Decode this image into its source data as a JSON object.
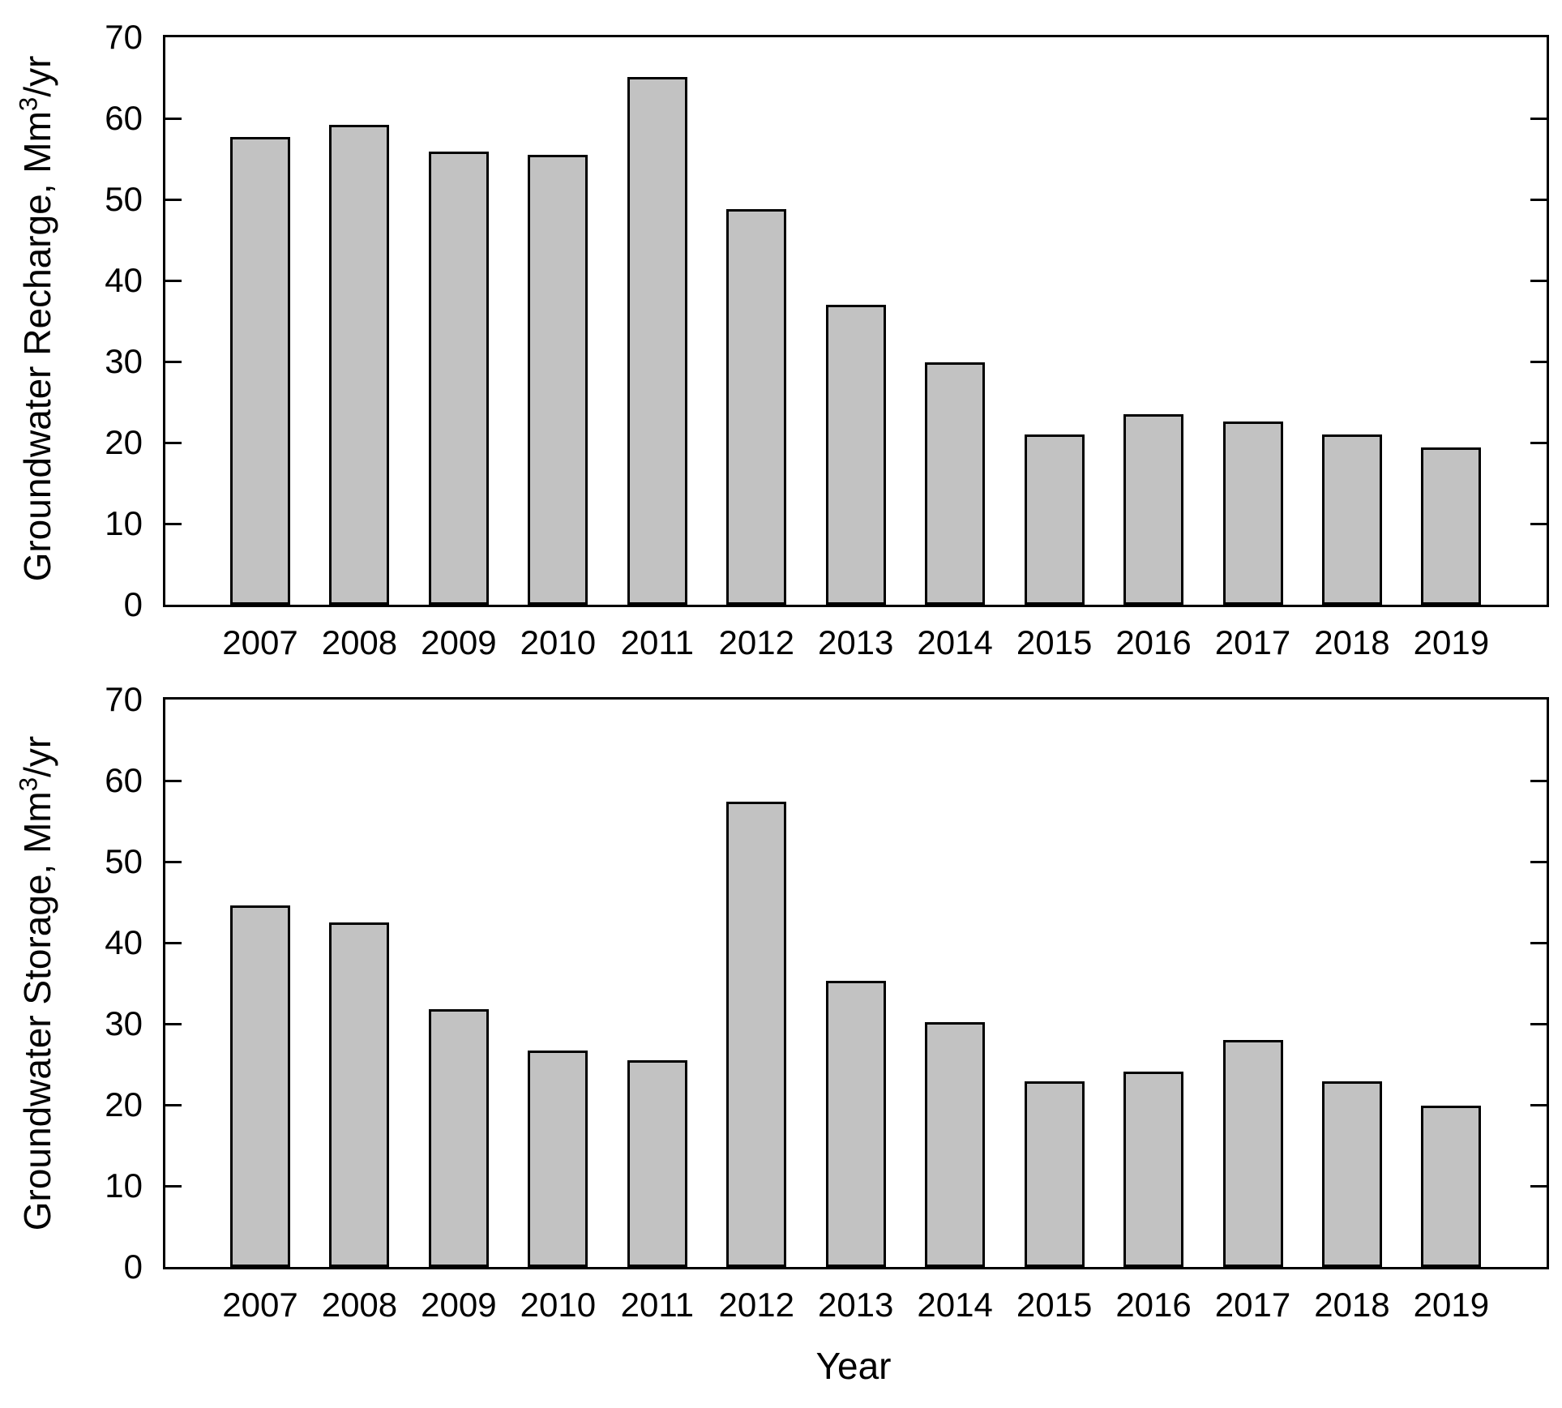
{
  "page": {
    "background": "#ffffff"
  },
  "style": {
    "bar_fill": "#c2c2c2",
    "bar_border": "#000000",
    "axis_color": "#000000",
    "text_color": "#000000"
  },
  "axes": {
    "y_tick_labels": [
      "0",
      "10",
      "20",
      "30",
      "40",
      "50",
      "60",
      "70"
    ],
    "x_tick_labels": [
      "2007",
      "2008",
      "2009",
      "2010",
      "2011",
      "2012",
      "2013",
      "2014",
      "2015",
      "2016",
      "2017",
      "2018",
      "2019"
    ],
    "x_axis_title": "Year",
    "y_axis_titles": [
      {
        "prefix": "Groundwater Recharge, Mm",
        "sup": "3",
        "suffix": "/yr"
      },
      {
        "prefix": "Groundwater Storage, Mm",
        "sup": "3",
        "suffix": "/yr"
      }
    ]
  },
  "chart_data": [
    {
      "type": "bar",
      "title": "",
      "categories": [
        2007,
        2008,
        2009,
        2010,
        2011,
        2012,
        2013,
        2014,
        2015,
        2016,
        2017,
        2018,
        2019
      ],
      "values": [
        57.7,
        59.2,
        55.9,
        55.5,
        65.1,
        48.8,
        37.0,
        29.9,
        21.0,
        23.5,
        22.6,
        21.0,
        19.4
      ],
      "xlabel": "Year",
      "ylabel": "Groundwater Recharge, Mm3/yr",
      "ylim": [
        0,
        70
      ],
      "yticks": [
        0,
        10,
        20,
        30,
        40,
        50,
        60,
        70
      ],
      "grid": false,
      "legend": "none",
      "bar_color": "#c2c2c2"
    },
    {
      "type": "bar",
      "title": "",
      "categories": [
        2007,
        2008,
        2009,
        2010,
        2011,
        2012,
        2013,
        2014,
        2015,
        2016,
        2017,
        2018,
        2019
      ],
      "values": [
        44.6,
        42.5,
        31.8,
        26.7,
        25.5,
        57.4,
        35.3,
        30.2,
        22.9,
        24.1,
        28.0,
        22.9,
        19.9
      ],
      "xlabel": "Year",
      "ylabel": "Groundwater Storage, Mm3/yr",
      "ylim": [
        0,
        70
      ],
      "yticks": [
        0,
        10,
        20,
        30,
        40,
        50,
        60,
        70
      ],
      "grid": false,
      "legend": "none",
      "bar_color": "#c2c2c2"
    }
  ]
}
